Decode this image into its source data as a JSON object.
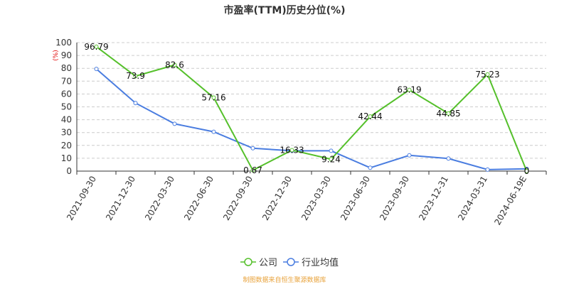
{
  "chart_data": {
    "type": "line",
    "title": "市盈率(TTM)历史分位(%)",
    "unit": "(%)",
    "categories": [
      "2021-09-30",
      "2021-12-30",
      "2022-03-30",
      "2022-06-30",
      "2022-09-30",
      "2022-12-30",
      "2023-03-30",
      "2023-06-30",
      "2023-09-30",
      "2023-12-31",
      "2024-03-31",
      "2024-06-19E"
    ],
    "ylim": [
      0,
      100
    ],
    "yticks": [
      0,
      10,
      20,
      30,
      40,
      50,
      60,
      70,
      80,
      90,
      100
    ],
    "grid": true,
    "legend_position": "bottom",
    "series": [
      {
        "name": "公司",
        "color": "#55c02b",
        "values": [
          96.79,
          73.9,
          82.6,
          57.16,
          0.67,
          16.33,
          9.24,
          42.44,
          63.19,
          44.85,
          75.23,
          0
        ],
        "labels": [
          "96.79",
          "73.9",
          "82.6",
          "57.16",
          "0.67",
          "16.33",
          "9.24",
          "42.44",
          "63.19",
          "44.85",
          "75.23",
          "0"
        ]
      },
      {
        "name": "行业均值",
        "color": "#4a7de0",
        "values": [
          79.5,
          53,
          36.8,
          30.6,
          17.8,
          15.8,
          15.8,
          2.6,
          12.3,
          9.8,
          1.2,
          1.8
        ]
      }
    ],
    "source": "制图数据来自恒生聚源数据库"
  }
}
